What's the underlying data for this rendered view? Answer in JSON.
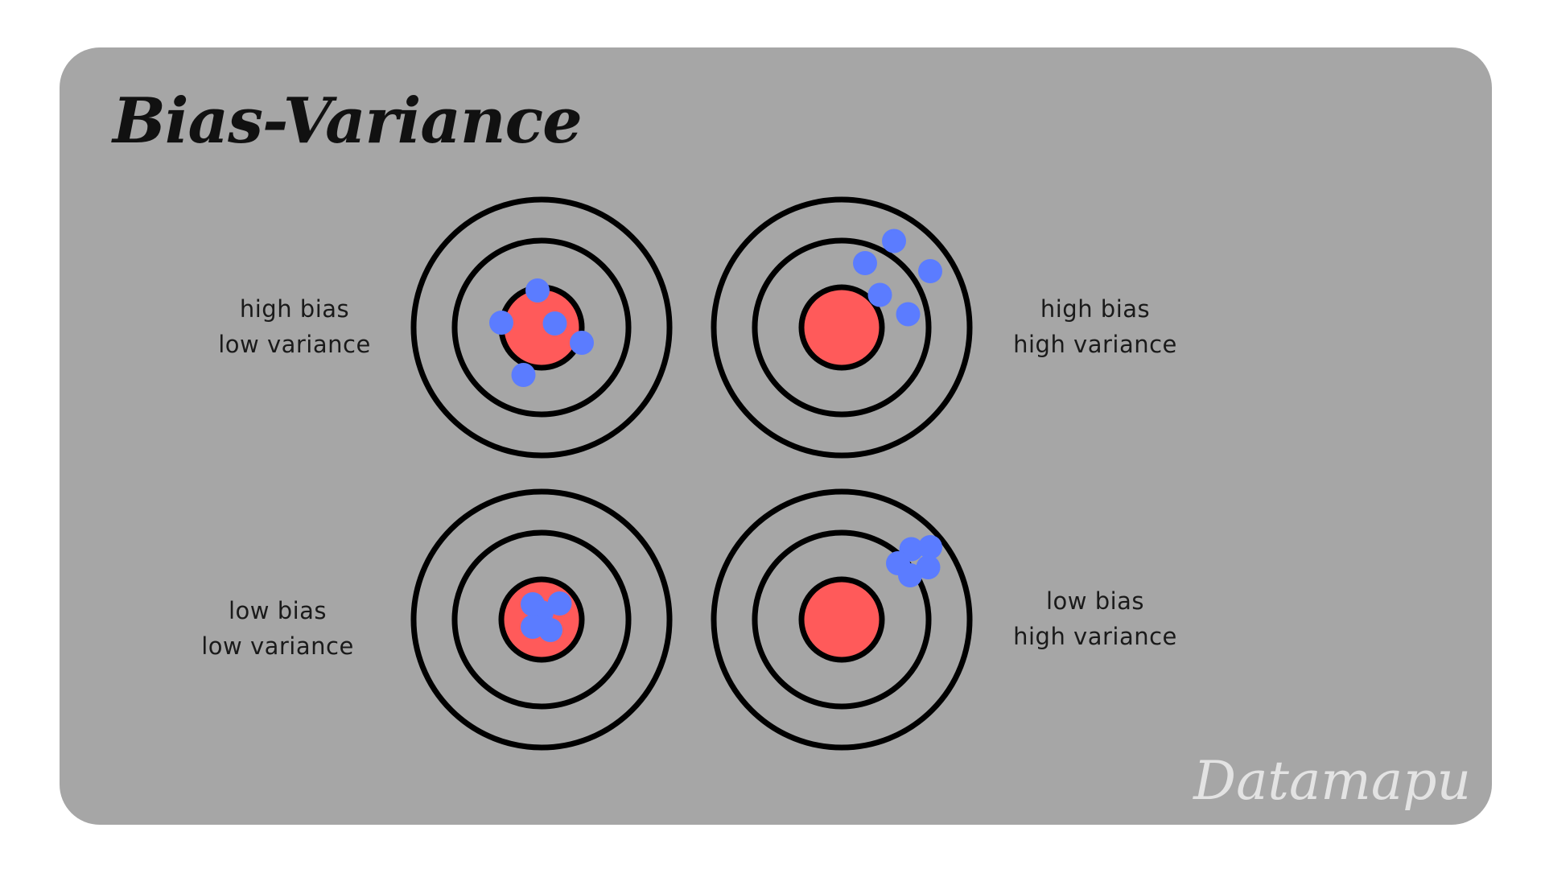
{
  "title": "Bias-Variance",
  "watermark": "Datamapu",
  "colors": {
    "background": "#a6a6a6",
    "ring": "#000000",
    "bullseye": "#ff5a5a",
    "shot": "#5b7cff",
    "watermark": "#e3e3e3"
  },
  "panels": [
    {
      "line1": "high bias",
      "line2": "low variance",
      "shots": [
        [
          -0.1,
          -0.92
        ],
        [
          -1.0,
          -0.12
        ],
        [
          0.33,
          -0.1
        ],
        [
          1.0,
          0.38
        ],
        [
          -0.45,
          1.18
        ]
      ]
    },
    {
      "line1": "high bias",
      "line2": "high variance",
      "shots": [
        [
          1.3,
          -2.15
        ],
        [
          0.58,
          -1.6
        ],
        [
          2.2,
          -1.4
        ],
        [
          0.95,
          -0.81
        ],
        [
          1.65,
          -0.33
        ]
      ]
    },
    {
      "line1": "low bias",
      "line2": "low variance",
      "shots": [
        [
          -0.22,
          -0.38
        ],
        [
          0.45,
          -0.4
        ],
        [
          0.0,
          -0.18
        ],
        [
          -0.22,
          0.18
        ],
        [
          0.22,
          0.26
        ]
      ]
    },
    {
      "line1": "low bias",
      "line2": "high variance",
      "shots": [
        [
          1.73,
          -1.75
        ],
        [
          2.2,
          -1.8
        ],
        [
          1.4,
          -1.4
        ],
        [
          2.15,
          -1.3
        ],
        [
          1.7,
          -1.1
        ]
      ]
    }
  ]
}
